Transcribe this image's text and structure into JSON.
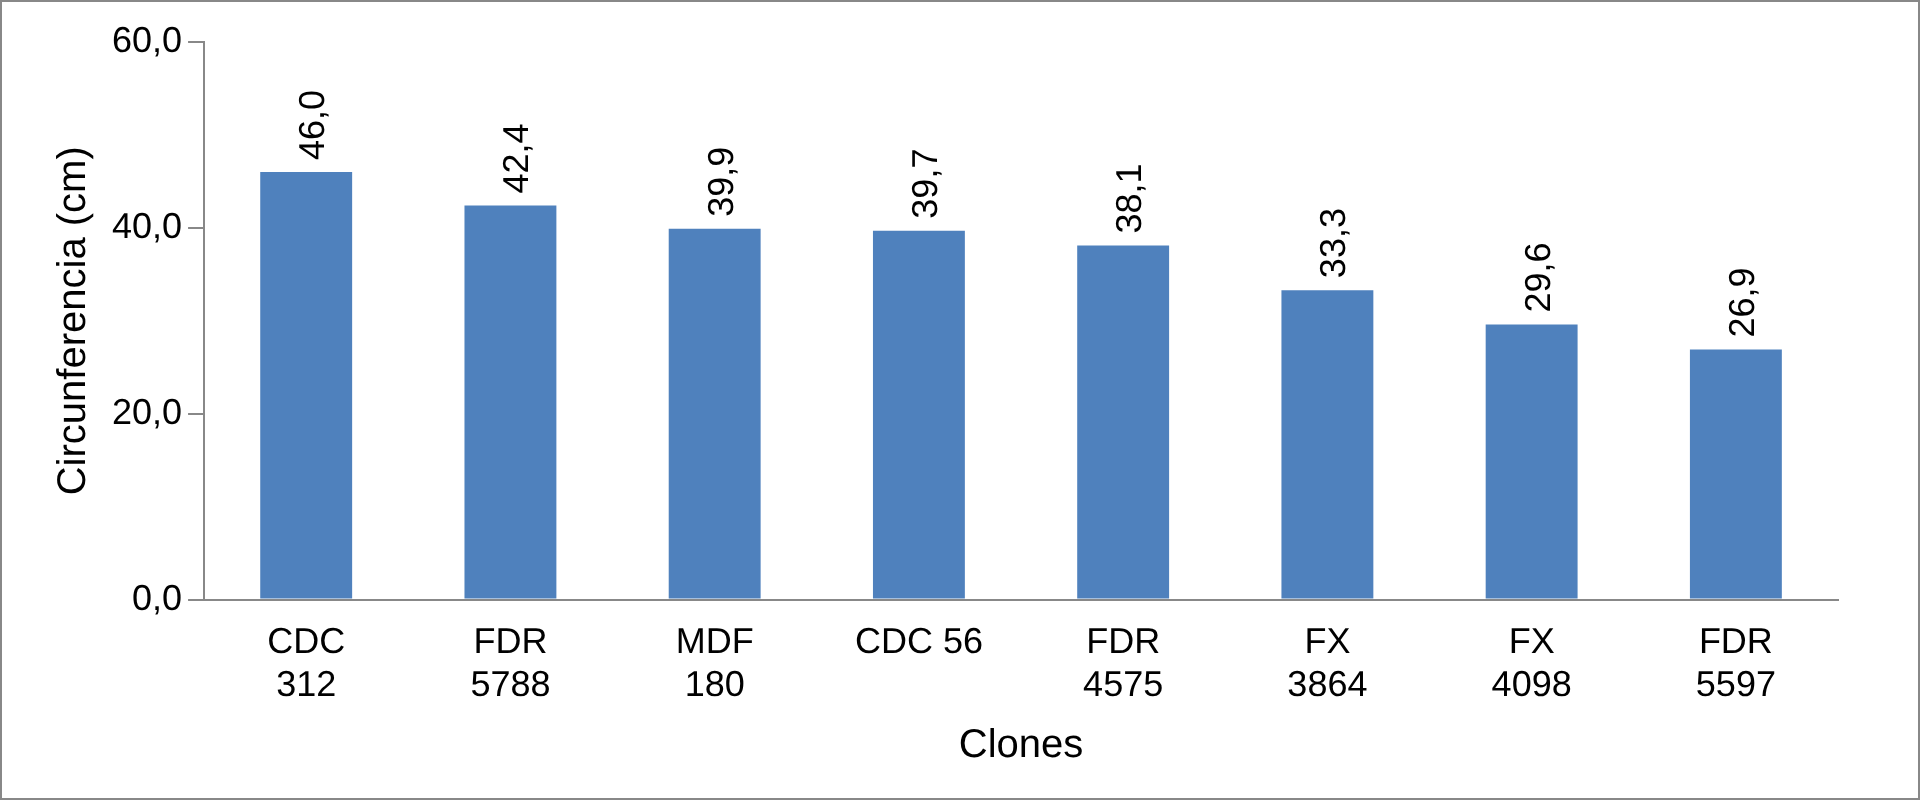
{
  "chart_data": {
    "type": "bar",
    "xlabel": "Clones",
    "ylabel": "Circunferencia (cm)",
    "categories": [
      "CDC\n312",
      "FDR\n5788",
      "MDF\n180",
      "CDC 56",
      "FDR\n4575",
      "FX\n3864",
      "FX\n4098",
      "FDR\n5597"
    ],
    "values": [
      46.0,
      42.4,
      39.9,
      39.7,
      38.1,
      33.3,
      29.6,
      26.9
    ],
    "value_labels": [
      "46,0",
      "42,4",
      "39,9",
      "39,7",
      "38,1",
      "33,3",
      "29,6",
      "26,9"
    ],
    "color": "#4f81bd",
    "ylim": [
      0,
      60
    ],
    "yticks": [
      {
        "value": 0,
        "label": "0,0"
      },
      {
        "value": 20,
        "label": "20,0"
      },
      {
        "value": 40,
        "label": "40,0"
      },
      {
        "value": 60,
        "label": "60,0"
      }
    ],
    "grid": false,
    "legend": false
  }
}
